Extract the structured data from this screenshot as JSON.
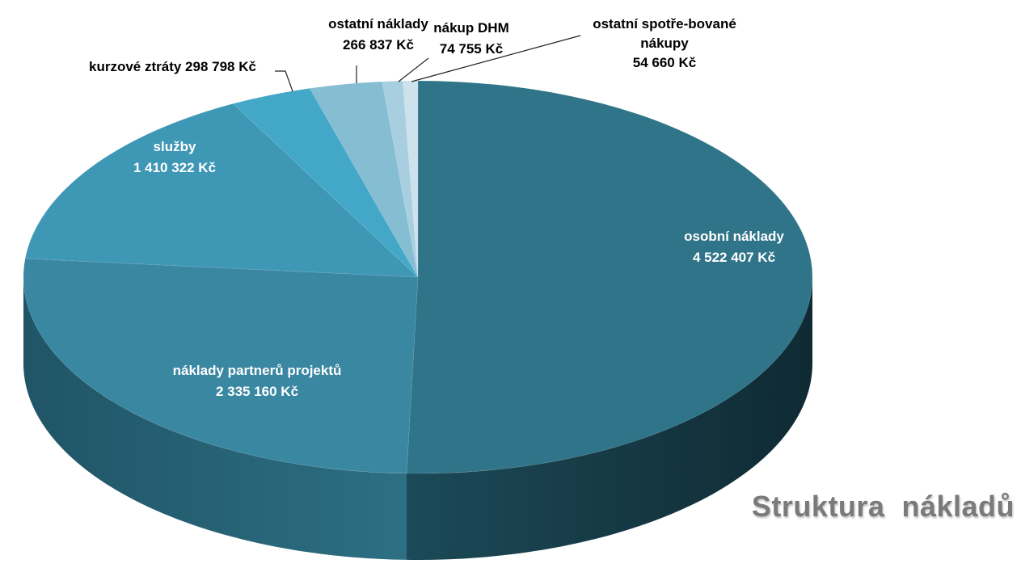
{
  "chart_data": {
    "type": "pie",
    "title": "Struktura  nákladů",
    "slices": [
      {
        "label": "osobní náklady",
        "value": 4522407,
        "value_text": "4 522 407 Kč",
        "color": "#2f7488"
      },
      {
        "label": "náklady partnerů projektů",
        "value": 2335160,
        "value_text": "2 335 160 Kč",
        "color": "#3a87a2"
      },
      {
        "label": "služby",
        "value": 1410322,
        "value_text": "1 410 322 Kč",
        "color": "#3f97b6"
      },
      {
        "label": "kurzové ztráty",
        "value": 298798,
        "value_text": "298 798 Kč",
        "color": "#43a8c8"
      },
      {
        "label": "ostatní náklady",
        "value": 266837,
        "value_text": "266 837 Kč",
        "color": "#85bdd3"
      },
      {
        "label": "nákup DHM",
        "value": 74755,
        "value_text": "74 755 Kč",
        "color": "#a8cfe0"
      },
      {
        "label": "ostatní spotře-bované nákupy",
        "value": 54660,
        "value_text": "54 660 Kč",
        "color": "#cde2ec"
      }
    ],
    "legend": "none",
    "style": "3d-pie",
    "data_labels": "inside-or-callout"
  }
}
